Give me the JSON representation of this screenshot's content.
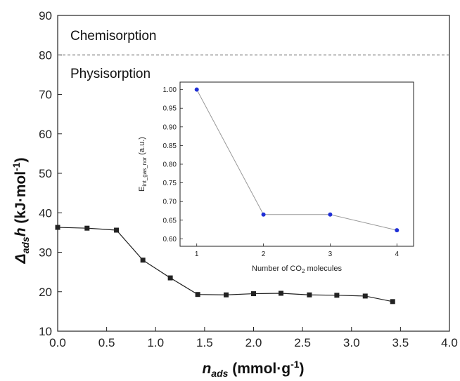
{
  "chart_data": [
    {
      "type": "line",
      "x": [
        0.0,
        0.3,
        0.6,
        0.87,
        1.15,
        1.43,
        1.72,
        2.0,
        2.28,
        2.57,
        2.85,
        3.14,
        3.42
      ],
      "values": [
        36.3,
        36.1,
        35.6,
        28.0,
        23.5,
        19.3,
        19.2,
        19.5,
        19.6,
        19.2,
        19.1,
        18.9,
        17.5
      ],
      "xlim": [
        0,
        4
      ],
      "ylim": [
        10,
        90
      ],
      "xticks": [
        "0.0",
        "0.5",
        "1.0",
        "1.5",
        "2.0",
        "2.5",
        "3.0",
        "3.5",
        "4.0"
      ],
      "yticks": [
        "10",
        "20",
        "30",
        "40",
        "50",
        "60",
        "70",
        "80",
        "90"
      ],
      "xlabel": {
        "main": "n",
        "sub": "ads",
        "rest": " (mmol·g",
        "sup": "-1",
        "close": ")"
      },
      "ylabel": {
        "main": "Δ",
        "sub": "ads",
        "mid": "h",
        "rest": " (kJ·mol",
        "sup": "-1",
        "close": ")"
      },
      "reference_line": {
        "y": 80,
        "style": "dashed"
      },
      "region_labels": {
        "above": "Chemisorption",
        "below": "Physisorption"
      },
      "marker": "square",
      "color": "#222222"
    },
    {
      "type": "line",
      "x": [
        1,
        2,
        3,
        4
      ],
      "values": [
        1.0,
        0.665,
        0.665,
        0.623
      ],
      "xlim": [
        0.75,
        4.25
      ],
      "ylim": [
        0.58,
        1.02
      ],
      "xticks": [
        "1",
        "2",
        "3",
        "4"
      ],
      "yticks": [
        "0.60",
        "0.65",
        "0.70",
        "0.75",
        "0.80",
        "0.85",
        "0.90",
        "0.95",
        "1.00"
      ],
      "xlabel": {
        "main": "Number of CO",
        "sub": "2",
        "rest": " molecules"
      },
      "ylabel": {
        "main": "E",
        "sub": "int_gas_nor",
        "rest": " (a.u.)"
      },
      "marker": "circle",
      "marker_color": "#1f2fd6",
      "line_color": "#999999"
    }
  ]
}
